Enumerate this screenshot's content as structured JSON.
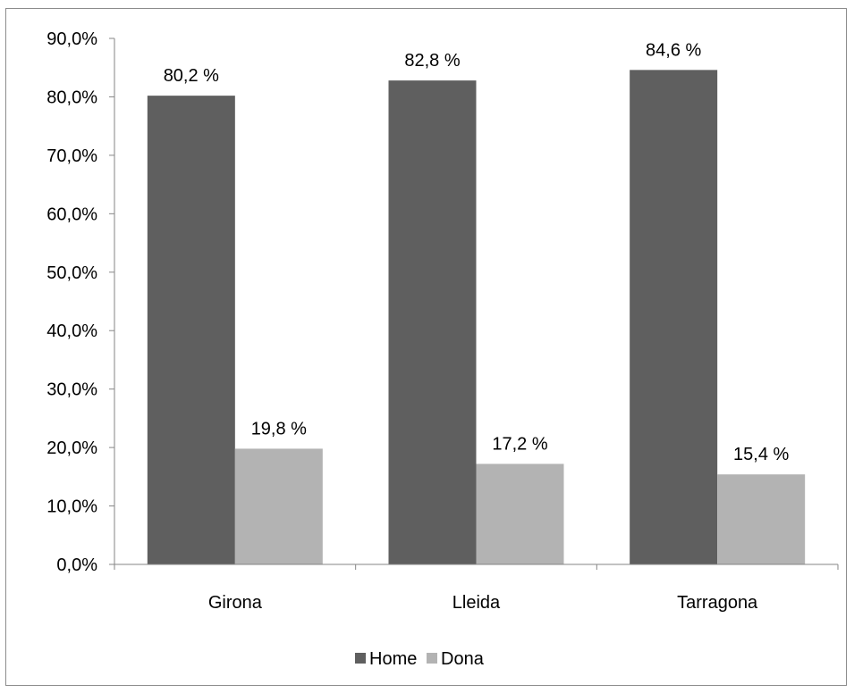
{
  "chart_data": {
    "type": "bar",
    "title": "",
    "xlabel": "",
    "ylabel": "",
    "categories": [
      "Girona",
      "Lleida",
      "Tarragona"
    ],
    "series": [
      {
        "name": "Home",
        "values": [
          80.2,
          82.8,
          84.6
        ],
        "labels": [
          "80,2 %",
          "82,8 %",
          "84,6 %"
        ],
        "color": "#5f5f5f"
      },
      {
        "name": "Dona",
        "values": [
          19.8,
          17.2,
          15.4
        ],
        "labels": [
          "19,8 %",
          "17,2 %",
          "15,4 %"
        ],
        "color": "#b3b3b3"
      }
    ],
    "ylim": [
      0,
      90
    ],
    "yticks": [
      0,
      10,
      20,
      30,
      40,
      50,
      60,
      70,
      80,
      90
    ],
    "ytick_labels": [
      "0,0%",
      "10,0%",
      "20,0%",
      "30,0%",
      "40,0%",
      "50,0%",
      "60,0%",
      "70,0%",
      "80,0%",
      "90,0%"
    ],
    "grid": false,
    "legend_position": "bottom"
  }
}
